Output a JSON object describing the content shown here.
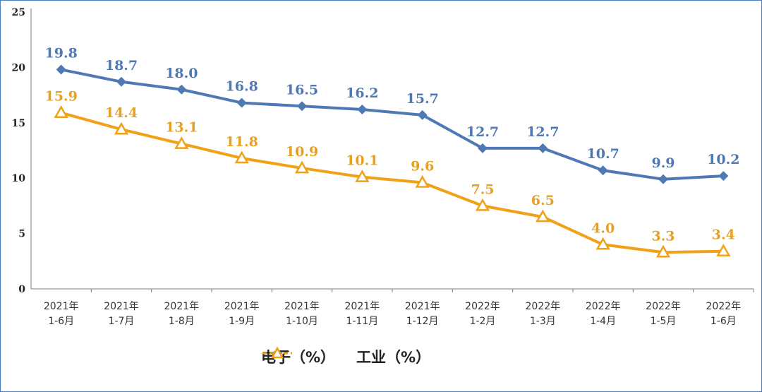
{
  "chart_data": {
    "type": "line",
    "categories": [
      [
        "2021年",
        "1-6月"
      ],
      [
        "2021年",
        "1-7月"
      ],
      [
        "2021年",
        "1-8月"
      ],
      [
        "2021年",
        "1-9月"
      ],
      [
        "2021年",
        "1-10月"
      ],
      [
        "2021年",
        "1-11月"
      ],
      [
        "2021年",
        "1-12月"
      ],
      [
        "2022年",
        "1-2月"
      ],
      [
        "2022年",
        "1-3月"
      ],
      [
        "2022年",
        "1-4月"
      ],
      [
        "2022年",
        "1-5月"
      ],
      [
        "2022年",
        "1-6月"
      ]
    ],
    "series": [
      {
        "name": "电子（%）",
        "color": "#4f79b3",
        "marker": "diamond",
        "values": [
          19.8,
          18.7,
          18.0,
          16.8,
          16.5,
          16.2,
          15.7,
          12.7,
          12.7,
          10.7,
          9.9,
          10.2
        ],
        "labels": [
          "19.8",
          "18.7",
          "18.0",
          "16.8",
          "16.5",
          "16.2",
          "15.7",
          "12.7",
          "12.7",
          "10.7",
          "9.9",
          "10.2"
        ]
      },
      {
        "name": "工业（%）",
        "color": "#f0a116",
        "marker": "triangle",
        "values": [
          15.9,
          14.4,
          13.1,
          11.8,
          10.9,
          10.1,
          9.6,
          7.5,
          6.5,
          4.0,
          3.3,
          3.4
        ],
        "labels": [
          "15.9",
          "14.4",
          "13.1",
          "11.8",
          "10.9",
          "10.1",
          "9.6",
          "7.5",
          "6.5",
          "4.0",
          "3.3",
          "3.4"
        ]
      }
    ],
    "ylim": [
      0,
      25
    ],
    "yticks": [
      "0",
      "5",
      "10",
      "15",
      "20",
      "25"
    ],
    "grid": false,
    "legend_position": "bottom"
  }
}
